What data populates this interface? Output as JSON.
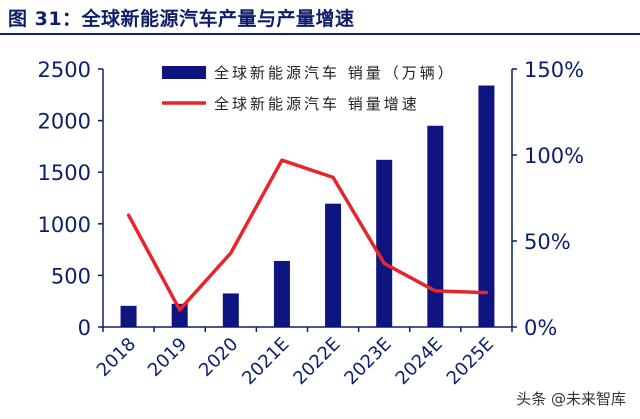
{
  "header": {
    "title": "图 31：全球新能源汽车产量与产量增速"
  },
  "watermark": "头条 @未来智库",
  "colors": {
    "bar": "#0e1580",
    "line": "#e8262a",
    "axis": "#0d1f6b",
    "title": "#0d1f6b"
  },
  "chart_data": {
    "type": "bar",
    "categories": [
      "2018",
      "2019",
      "2020",
      "2021E",
      "2022E",
      "2023E",
      "2024E",
      "2025E"
    ],
    "series": [
      {
        "name": "全球新能源汽车 销量（万辆）",
        "type": "bar",
        "axis": "left",
        "values": [
          205,
          225,
          325,
          640,
          1195,
          1620,
          1950,
          2340
        ]
      },
      {
        "name": "全球新能源汽车 销量增速",
        "type": "line",
        "axis": "right",
        "values": [
          0.65,
          0.1,
          0.43,
          0.97,
          0.87,
          0.37,
          0.21,
          0.2
        ]
      }
    ],
    "ylim": [
      0,
      2500
    ],
    "y_ticks": [
      "2500",
      "2000",
      "1500",
      "1000",
      "500",
      "0"
    ],
    "y_tick_values": [
      2500,
      2000,
      1500,
      1000,
      500,
      0
    ],
    "y2lim": [
      0,
      1.5
    ],
    "y2_ticks": [
      "150%",
      "100%",
      "50%",
      "0%"
    ],
    "y2_tick_values": [
      1.5,
      1.0,
      0.5,
      0
    ],
    "legend_position": "top",
    "grid": false,
    "xlabel": "",
    "ylabel": ""
  }
}
